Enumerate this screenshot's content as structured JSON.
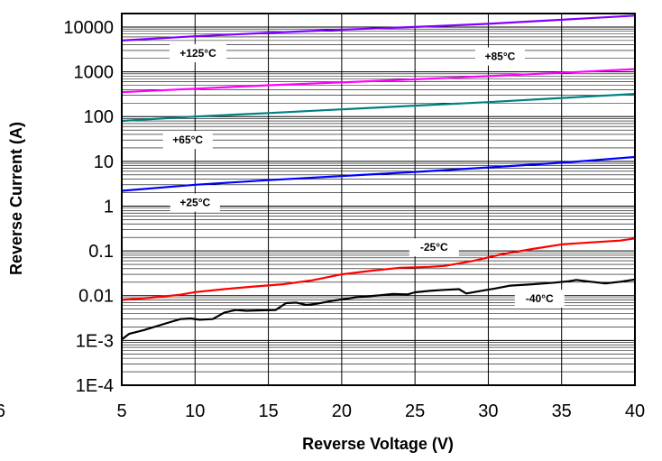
{
  "chart_data": {
    "type": "line",
    "title": "",
    "xlabel": "Reverse Voltage (V)",
    "ylabel": "Reverse Current (A)",
    "xlim": [
      5,
      40
    ],
    "ylim": [
      0.0001,
      20000
    ],
    "y_scale": "log",
    "grid": true,
    "x_ticks": [
      5,
      10,
      15,
      20,
      25,
      30,
      35,
      40
    ],
    "x_tick_labels": [
      "5",
      "10",
      "15",
      "20",
      "25",
      "30",
      "35",
      "40"
    ],
    "stray_tick_label": "6",
    "y_ticks": [
      0.0001,
      0.001,
      0.01,
      0.1,
      1,
      10,
      100,
      1000,
      10000
    ],
    "y_tick_labels": [
      "1E-4",
      "1E-3",
      "0.01",
      "0.1",
      "1",
      "10",
      "100",
      "1000",
      "10000"
    ],
    "annotations": [
      {
        "text": "+125°C",
        "x": 10.2,
        "y": 2600
      },
      {
        "text": "+85°C",
        "x": 30.8,
        "y": 2200
      },
      {
        "text": "+65°C",
        "x": 9.5,
        "y": 30
      },
      {
        "text": "+25°C",
        "x": 10.0,
        "y": 1.2
      },
      {
        "text": "-25°C",
        "x": 26.3,
        "y": 0.12
      },
      {
        "text": "-40°C",
        "x": 33.5,
        "y": 0.0085
      }
    ],
    "series": [
      {
        "color": "#8000ff",
        "x": [
          5,
          10,
          15,
          20,
          25,
          30,
          35,
          40
        ],
        "y": [
          5000,
          6200,
          7400,
          8700,
          10000,
          11800,
          14500,
          18000
        ]
      },
      {
        "color": "#ff00ff",
        "x": [
          5,
          10,
          15,
          20,
          25,
          30,
          35,
          40
        ],
        "y": [
          350,
          420,
          500,
          580,
          680,
          800,
          950,
          1150
        ]
      },
      {
        "color": "#008080",
        "x": [
          5,
          10,
          15,
          20,
          25,
          30,
          35,
          40
        ],
        "y": [
          80,
          100,
          120,
          145,
          175,
          210,
          260,
          320
        ]
      },
      {
        "color": "#0000ff",
        "x": [
          5,
          10,
          15,
          20,
          25,
          30,
          35,
          40
        ],
        "y": [
          2.2,
          3.0,
          3.8,
          4.7,
          5.8,
          7.3,
          9.3,
          12.5
        ]
      },
      {
        "color": "#ff0000",
        "x": [
          5,
          7,
          9,
          10,
          12,
          14,
          16,
          18,
          20,
          22,
          24,
          26,
          27,
          29,
          31,
          33,
          35,
          37,
          39,
          40
        ],
        "y": [
          0.008,
          0.009,
          0.0105,
          0.012,
          0.014,
          0.016,
          0.018,
          0.022,
          0.03,
          0.036,
          0.042,
          0.044,
          0.046,
          0.06,
          0.085,
          0.11,
          0.14,
          0.155,
          0.17,
          0.19
        ]
      },
      {
        "color": "#000000",
        "x": [
          5,
          5.5,
          6.5,
          8,
          9,
          9.7,
          10.3,
          11.2,
          12,
          12.8,
          13.5,
          14.5,
          15.5,
          16.2,
          16.9,
          17.6,
          18.3,
          19.5,
          21,
          22.5,
          23.5,
          24.5,
          25,
          26,
          27,
          28,
          28.5,
          29.5,
          30.5,
          31.5,
          33,
          34.5,
          35.5,
          36,
          37,
          38,
          39,
          40
        ],
        "y": [
          0.00105,
          0.0014,
          0.0017,
          0.0024,
          0.003,
          0.0031,
          0.0029,
          0.003,
          0.0042,
          0.0048,
          0.0046,
          0.0047,
          0.0048,
          0.0068,
          0.007,
          0.0062,
          0.0066,
          0.0078,
          0.0092,
          0.0101,
          0.0109,
          0.0107,
          0.0119,
          0.0128,
          0.0135,
          0.014,
          0.0112,
          0.0128,
          0.0145,
          0.0168,
          0.018,
          0.0195,
          0.021,
          0.0225,
          0.0205,
          0.0188,
          0.0205,
          0.023
        ]
      }
    ]
  }
}
